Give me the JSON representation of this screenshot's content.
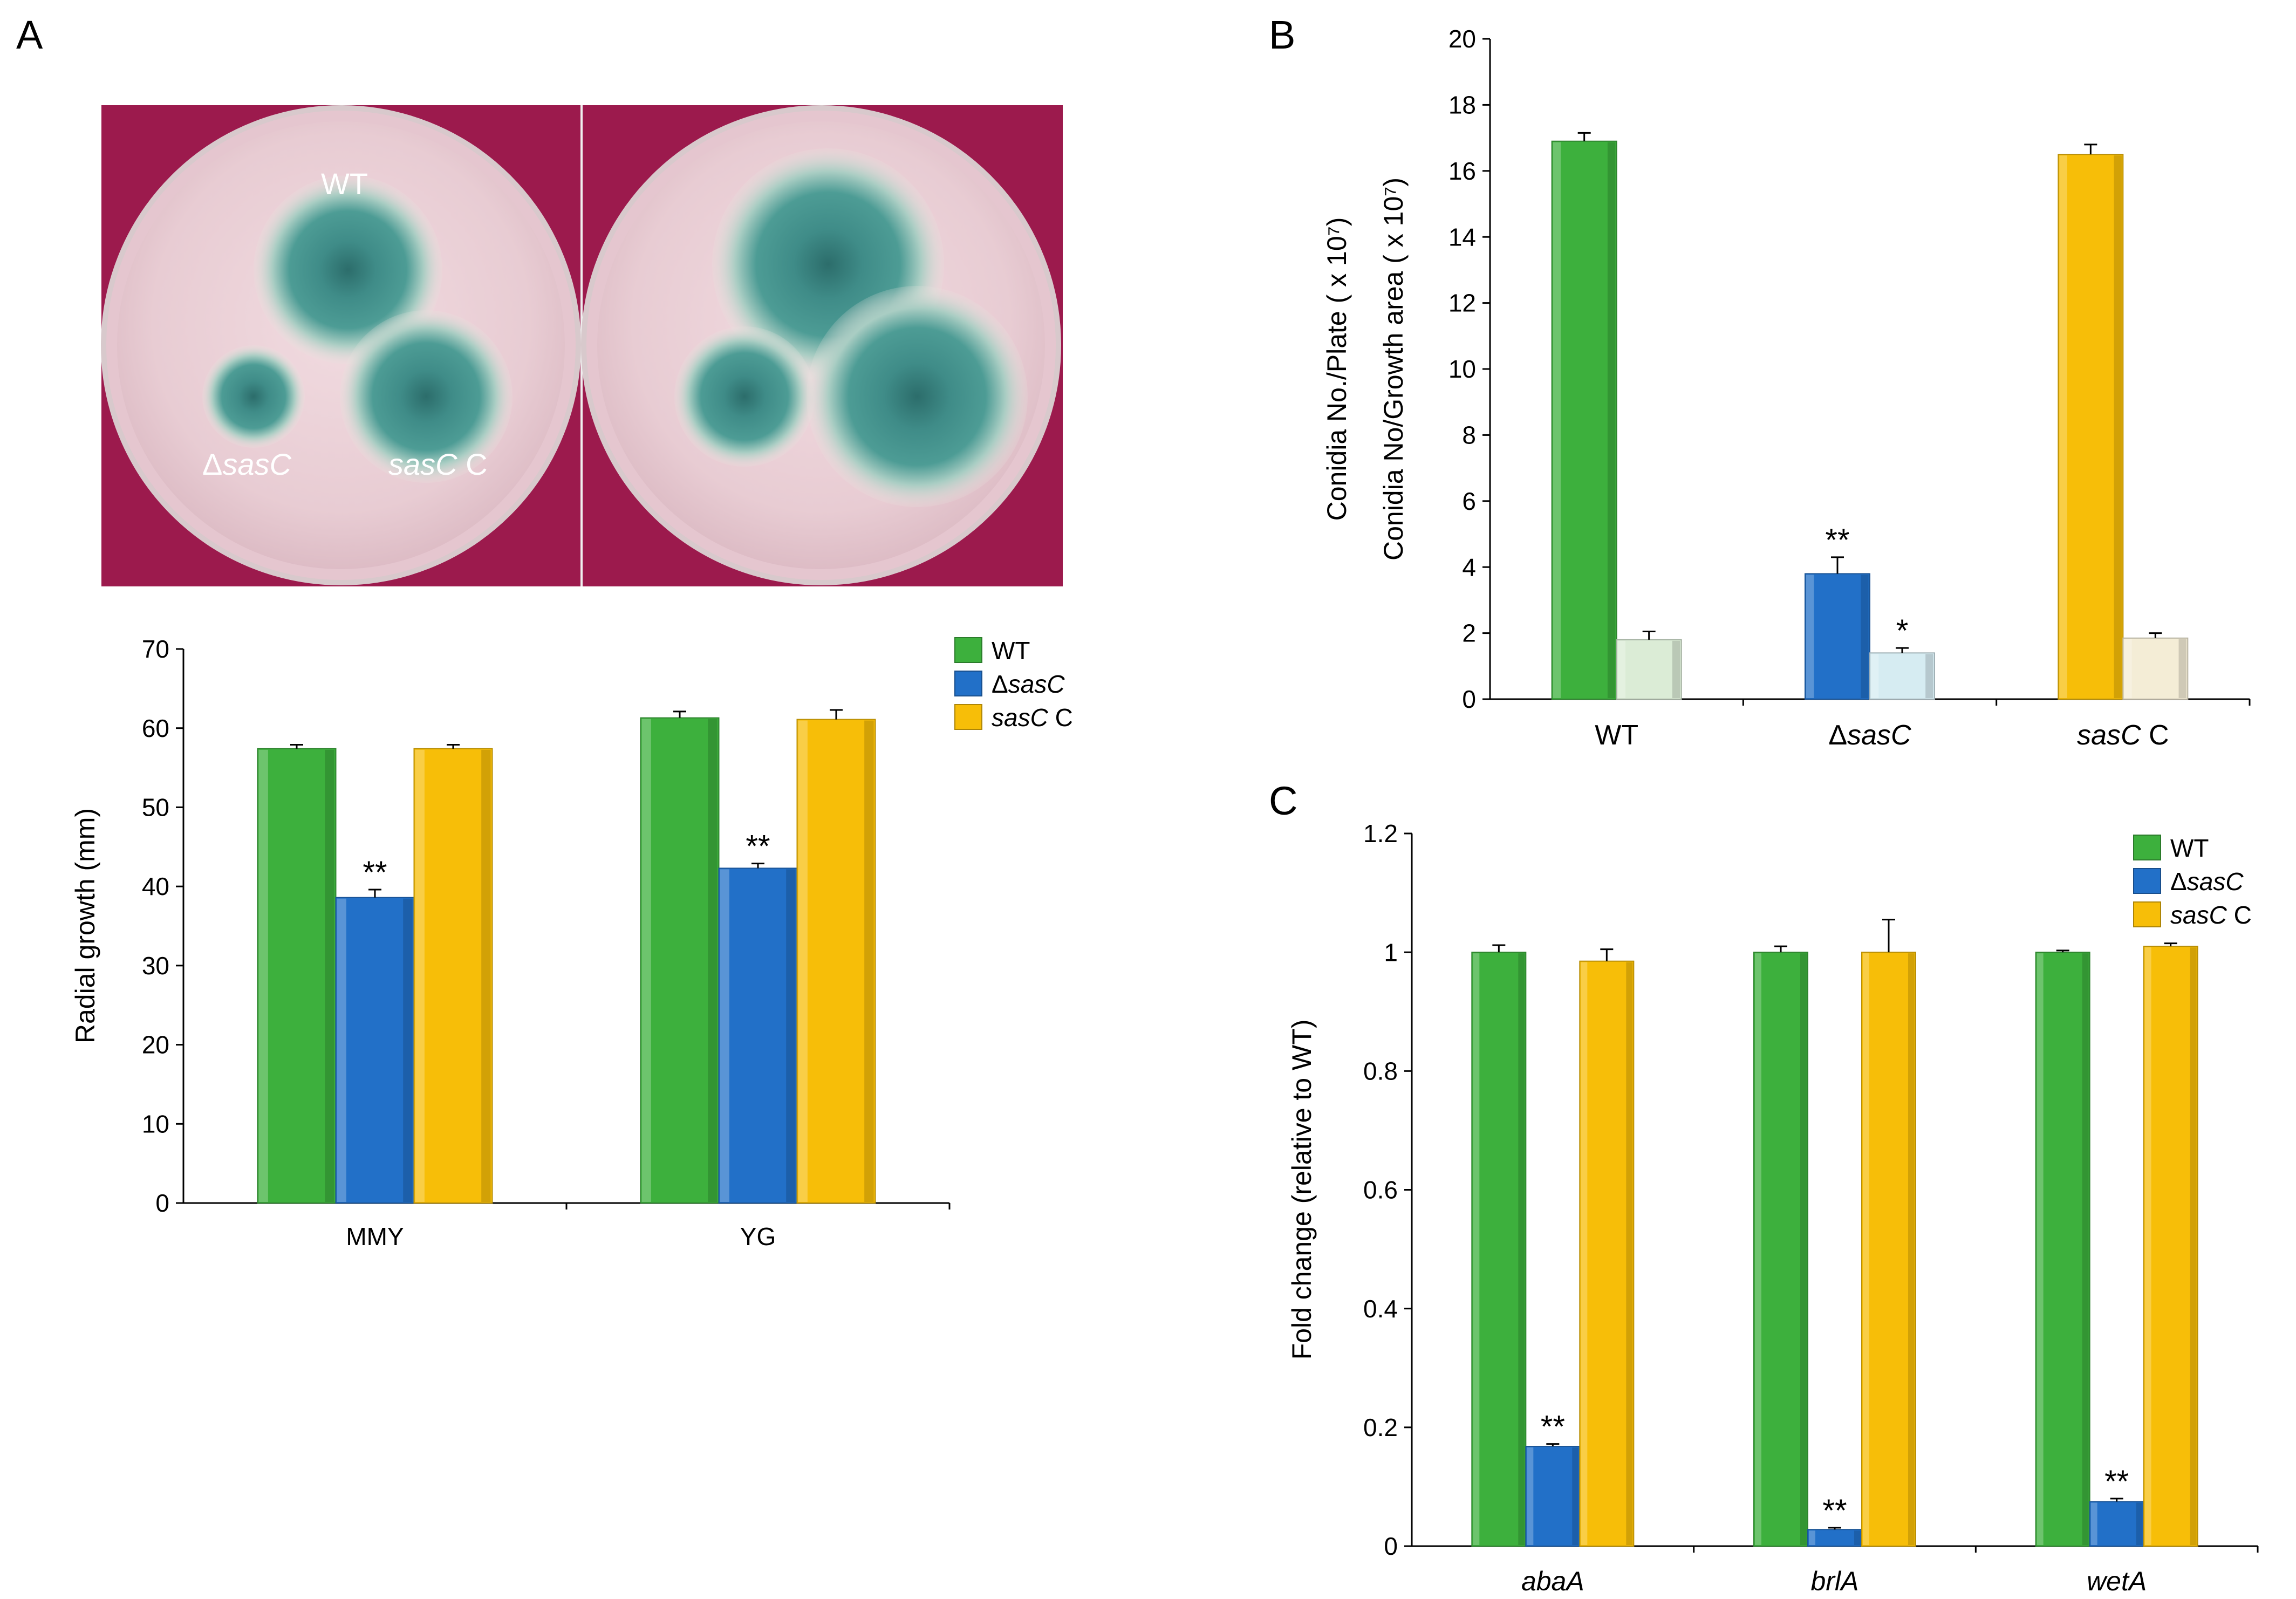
{
  "figure": {
    "panel_labels": [
      "A",
      "B",
      "C"
    ],
    "plate_labels": {
      "wt": "WT",
      "del_prefix": "Δ",
      "del_gene": "sasC",
      "comp_gene": "sasC",
      "comp_suffix": " C"
    }
  },
  "colors": {
    "wt": "#3db03d",
    "del": "#2270c8",
    "comp": "#f7be08",
    "wt_light": "#dbecd6",
    "del_light": "#d6ecf2",
    "comp_light": "#f4edd6",
    "plate_bg": "#9c1a4d",
    "axis": "#000000"
  },
  "chart_data": [
    {
      "id": "A",
      "type": "bar",
      "title": "",
      "xlabel": "",
      "ylabel": "Radial growth (mm)",
      "ylim": [
        0,
        70
      ],
      "yticks": [
        "0",
        "10",
        "20",
        "30",
        "40",
        "50",
        "60",
        "70"
      ],
      "categories": [
        "MMY",
        "YG"
      ],
      "series": [
        {
          "name": "WT",
          "color_key": "wt",
          "values": [
            57.4,
            61.3
          ],
          "errors": [
            0.5,
            0.8
          ],
          "marks": [
            "",
            ""
          ]
        },
        {
          "name": "ΔsasC",
          "color_key": "del",
          "values": [
            38.6,
            42.3
          ],
          "errors": [
            1.0,
            0.6
          ],
          "marks": [
            "**",
            "**"
          ]
        },
        {
          "name": "sasC C",
          "color_key": "comp",
          "values": [
            57.4,
            61.1
          ],
          "errors": [
            0.5,
            1.2
          ],
          "marks": [
            "",
            ""
          ]
        }
      ],
      "legend": [
        "WT",
        "ΔsasC",
        "sasC C"
      ],
      "legend_position": "top-right"
    },
    {
      "id": "B",
      "type": "bar",
      "title": "",
      "xlabel": "",
      "ylabel_line1": "Conidia No./Plate ( x 10⁷)",
      "ylabel_line2": "Conidia No/Growth area ( x 10⁷)",
      "ylim": [
        0,
        20
      ],
      "yticks": [
        "0",
        "2",
        "4",
        "6",
        "8",
        "10",
        "12",
        "14",
        "16",
        "18",
        "20"
      ],
      "categories": [
        "WT",
        "ΔsasC",
        "sasC C"
      ],
      "series": [
        {
          "name": "Conidia No./Plate",
          "color_keys": [
            "wt",
            "del",
            "comp"
          ],
          "values": [
            16.9,
            3.8,
            16.5
          ],
          "errors": [
            0.25,
            0.5,
            0.3
          ],
          "marks": [
            "",
            "**",
            ""
          ]
        },
        {
          "name": "Conidia No/Growth area",
          "color_keys": [
            "wt_light",
            "del_light",
            "comp_light"
          ],
          "values": [
            1.8,
            1.4,
            1.85
          ],
          "errors": [
            0.25,
            0.15,
            0.15
          ],
          "marks": [
            "",
            "*",
            ""
          ]
        }
      ]
    },
    {
      "id": "C",
      "type": "bar",
      "title": "",
      "xlabel": "",
      "ylabel": "Fold change (relative to WT)",
      "ylim": [
        0,
        1.2
      ],
      "yticks": [
        "0",
        "0.2",
        "0.4",
        "0.6",
        "0.8",
        "1",
        "1.2"
      ],
      "categories": [
        "abaA",
        "brlA",
        "wetA"
      ],
      "series": [
        {
          "name": "WT",
          "color_key": "wt",
          "values": [
            1.0,
            1.0,
            1.0
          ],
          "errors": [
            0.012,
            0.01,
            0.003
          ],
          "marks": [
            "",
            "",
            ""
          ]
        },
        {
          "name": "ΔsasC",
          "color_key": "del",
          "values": [
            0.168,
            0.028,
            0.075
          ],
          "errors": [
            0.004,
            0.003,
            0.005
          ],
          "marks": [
            "**",
            "**",
            "**"
          ]
        },
        {
          "name": "sasC C",
          "color_key": "comp",
          "values": [
            0.985,
            1.0,
            1.01
          ],
          "errors": [
            0.02,
            0.055,
            0.005
          ],
          "marks": [
            "",
            "",
            ""
          ]
        }
      ],
      "legend": [
        "WT",
        "ΔsasC",
        "sasC C"
      ],
      "legend_position": "top-right"
    }
  ]
}
